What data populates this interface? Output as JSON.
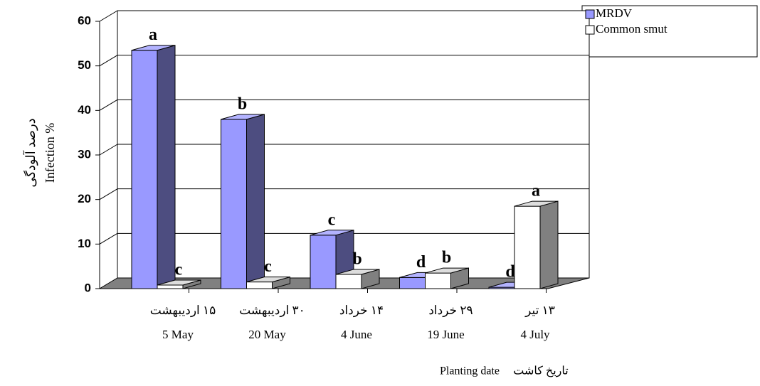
{
  "chart_data": {
    "type": "bar3d",
    "categories": [
      "۱۵ اردیبهشت",
      "۳۰ اردیبهشت",
      "۱۴ خرداد",
      "۲۹ خرداد",
      "۱۳ تیر"
    ],
    "categories_en": [
      "5 May",
      "20 May",
      "4 June",
      "19 June",
      "4 July"
    ],
    "y_label": [
      "درصد آلودگی",
      "Infection %"
    ],
    "x_label": [
      "Planting date",
      "تاریخ کاشت"
    ],
    "series": [
      {
        "name": "MRDV",
        "color": "#9999ff",
        "side_color": "#4d4d80",
        "values": [
          53.5,
          38,
          12,
          2.5,
          0.3
        ],
        "letters": [
          "a",
          "b",
          "c",
          "d",
          "d"
        ]
      },
      {
        "name": "Common smut",
        "color": "#ffffff",
        "side_color": "#808080",
        "values": [
          0.8,
          1.5,
          3.2,
          3.5,
          18.5
        ],
        "letters": [
          "c",
          "c",
          "b",
          "b",
          "a"
        ]
      }
    ],
    "ylim": [
      0,
      60
    ],
    "yticks": [
      0,
      10,
      20,
      30,
      40,
      50,
      60
    ],
    "grid": true
  }
}
